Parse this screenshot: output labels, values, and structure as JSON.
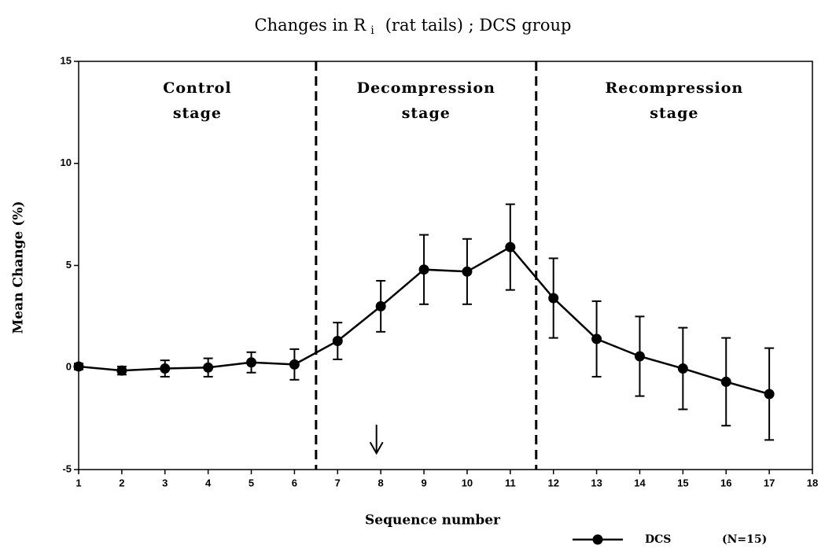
{
  "chart_data": {
    "type": "line",
    "title": [
      "Changes in R",
      "i",
      "(rat tails) ; DCS group"
    ],
    "x_label": "Sequence number",
    "y_label": "Mean Change (%)",
    "x": [
      1,
      2,
      3,
      4,
      5,
      6,
      7,
      8,
      9,
      10,
      11,
      12,
      13,
      14,
      15,
      16,
      17
    ],
    "series": [
      {
        "name": "DCS",
        "legend_note": "(N=15)",
        "color": "#000000",
        "values": [
          0.05,
          -0.15,
          -0.05,
          0.0,
          0.25,
          0.15,
          1.3,
          3.0,
          4.8,
          4.7,
          5.9,
          3.4,
          1.4,
          0.55,
          -0.05,
          -0.7,
          -1.3
        ],
        "errors": [
          0.15,
          0.2,
          0.4,
          0.45,
          0.5,
          0.75,
          0.9,
          1.25,
          1.7,
          1.6,
          2.1,
          1.95,
          1.85,
          1.95,
          2.0,
          2.15,
          2.25
        ]
      }
    ],
    "xlim": [
      1,
      18
    ],
    "xticks": [
      1,
      2,
      3,
      4,
      5,
      6,
      7,
      8,
      9,
      10,
      11,
      12,
      13,
      14,
      15,
      16,
      17,
      18
    ],
    "ylim": [
      -5,
      15
    ],
    "yticks": [
      -5,
      0,
      5,
      10,
      15
    ],
    "stage_boundaries": [
      6.5,
      11.6
    ],
    "stages": [
      [
        "Control",
        "stage"
      ],
      [
        "Decompression",
        "stage"
      ],
      [
        "Recompression",
        "stage"
      ]
    ],
    "arrow": {
      "x": 7.9,
      "y_from": -2.8,
      "y_to": -4.2
    }
  }
}
